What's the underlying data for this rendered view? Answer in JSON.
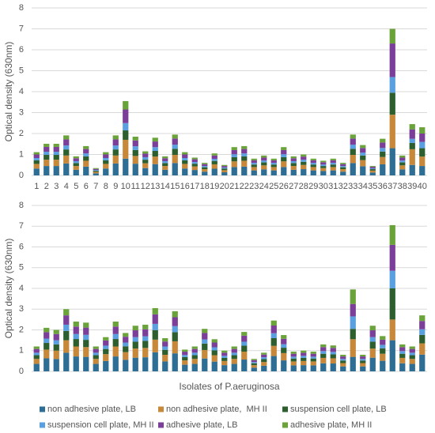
{
  "chart_data": [
    {
      "type": "stacked_bar",
      "y_label": "Optical density (630nm)",
      "categories": [
        "1",
        "2",
        "3",
        "4",
        "5",
        "6",
        "7",
        "8",
        "9",
        "10",
        "11",
        "12",
        "13",
        "14",
        "15",
        "16",
        "17",
        "18",
        "19",
        "20",
        "21",
        "22",
        "23",
        "24",
        "25",
        "26",
        "27",
        "28",
        "29",
        "30",
        "31",
        "32",
        "33",
        "34",
        "35",
        "36",
        "37",
        "38",
        "39",
        "40"
      ],
      "ylim": [
        0,
        8
      ],
      "yticks": [
        0,
        1,
        2,
        3,
        4,
        5,
        6,
        7,
        8
      ],
      "series": [
        {
          "color": "#2e6e94",
          "values": [
            0.33,
            0.45,
            0.45,
            0.57,
            0.27,
            0.42,
            0.1,
            0.33,
            0.57,
            0.8,
            0.56,
            0.35,
            0.54,
            0.27,
            0.59,
            0.33,
            0.26,
            0.18,
            0.32,
            0.15,
            0.4,
            0.42,
            0.24,
            0.29,
            0.24,
            0.4,
            0.27,
            0.3,
            0.24,
            0.21,
            0.24,
            0.18,
            0.59,
            0.44,
            0.14,
            0.53,
            1.3,
            0.29,
            0.5,
            0.45
          ]
        },
        {
          "color": "#c8883a",
          "values": [
            0.22,
            0.3,
            0.3,
            0.38,
            0.18,
            0.28,
            0.07,
            0.22,
            0.38,
            0.9,
            0.37,
            0.23,
            0.36,
            0.18,
            0.39,
            0.22,
            0.17,
            0.12,
            0.21,
            0.1,
            0.27,
            0.28,
            0.16,
            0.19,
            0.16,
            0.27,
            0.18,
            0.2,
            0.16,
            0.14,
            0.16,
            0.12,
            0.39,
            0.29,
            0.09,
            0.35,
            1.6,
            0.19,
            0.75,
            0.45
          ]
        },
        {
          "color": "#2d5f2e",
          "values": [
            0.17,
            0.23,
            0.23,
            0.29,
            0.14,
            0.21,
            0.05,
            0.17,
            0.29,
            0.45,
            0.28,
            0.17,
            0.27,
            0.14,
            0.29,
            0.17,
            0.13,
            0.09,
            0.16,
            0.08,
            0.2,
            0.21,
            0.12,
            0.14,
            0.12,
            0.2,
            0.14,
            0.15,
            0.12,
            0.1,
            0.12,
            0.09,
            0.29,
            0.22,
            0.07,
            0.26,
            1.05,
            0.14,
            0.3,
            0.4
          ]
        },
        {
          "color": "#5aa0e0",
          "values": [
            0.11,
            0.15,
            0.15,
            0.19,
            0.09,
            0.14,
            0.04,
            0.11,
            0.19,
            0.35,
            0.18,
            0.12,
            0.18,
            0.09,
            0.2,
            0.11,
            0.08,
            0.06,
            0.1,
            0.05,
            0.14,
            0.14,
            0.08,
            0.09,
            0.08,
            0.14,
            0.09,
            0.1,
            0.08,
            0.07,
            0.08,
            0.06,
            0.2,
            0.14,
            0.04,
            0.17,
            0.75,
            0.09,
            0.2,
            0.3
          ]
        },
        {
          "color": "#7b3f9a",
          "values": [
            0.17,
            0.23,
            0.23,
            0.29,
            0.14,
            0.21,
            0.05,
            0.17,
            0.29,
            0.65,
            0.28,
            0.17,
            0.27,
            0.14,
            0.29,
            0.17,
            0.13,
            0.09,
            0.16,
            0.07,
            0.2,
            0.21,
            0.12,
            0.14,
            0.12,
            0.2,
            0.14,
            0.15,
            0.12,
            0.11,
            0.12,
            0.09,
            0.29,
            0.22,
            0.07,
            0.26,
            1.6,
            0.14,
            0.45,
            0.4
          ]
        },
        {
          "color": "#6aa33a",
          "values": [
            0.11,
            0.15,
            0.15,
            0.19,
            0.09,
            0.14,
            0.04,
            0.11,
            0.19,
            0.4,
            0.18,
            0.11,
            0.18,
            0.09,
            0.19,
            0.11,
            0.08,
            0.06,
            0.1,
            0.05,
            0.14,
            0.14,
            0.08,
            0.1,
            0.08,
            0.14,
            0.09,
            0.1,
            0.08,
            0.07,
            0.08,
            0.06,
            0.19,
            0.14,
            0.04,
            0.18,
            0.7,
            0.1,
            0.25,
            0.3
          ]
        }
      ]
    },
    {
      "type": "stacked_bar",
      "y_label": "Optical density (630nm)",
      "x_label": "Isolates of P.aeruginosa",
      "legend": "bottom",
      "categories": [
        null,
        null,
        null,
        null,
        null,
        null,
        null,
        null,
        null,
        null,
        null,
        null,
        null,
        null,
        null,
        null,
        null,
        null,
        null,
        null,
        null,
        null,
        null,
        null,
        null,
        null,
        null,
        null,
        null,
        null,
        null,
        null,
        null,
        null,
        null,
        null,
        null,
        null,
        null,
        null
      ],
      "ylim": [
        0,
        8
      ],
      "yticks": [
        0,
        1,
        2,
        3,
        4,
        5,
        6,
        7,
        8
      ],
      "series": [
        {
          "name": "non adhesive plate, LB",
          "color": "#2e6e94",
          "values": [
            0.36,
            0.63,
            0.6,
            0.9,
            0.72,
            0.7,
            0.36,
            0.5,
            0.72,
            0.56,
            0.66,
            0.68,
            0.92,
            0.48,
            0.87,
            0.32,
            0.36,
            0.62,
            0.47,
            0.3,
            0.36,
            0.57,
            0.18,
            0.27,
            0.74,
            0.53,
            0.29,
            0.3,
            0.29,
            0.39,
            0.38,
            0.24,
            0.7,
            0.24,
            0.66,
            0.51,
            1.5,
            0.39,
            0.36,
            0.81
          ]
        },
        {
          "name": "non adhesive plate,  MH II",
          "color": "#c8883a",
          "values": [
            0.24,
            0.42,
            0.4,
            0.6,
            0.48,
            0.47,
            0.24,
            0.33,
            0.48,
            0.37,
            0.44,
            0.45,
            0.61,
            0.32,
            0.58,
            0.21,
            0.24,
            0.41,
            0.31,
            0.2,
            0.24,
            0.38,
            0.12,
            0.18,
            0.49,
            0.35,
            0.19,
            0.2,
            0.19,
            0.26,
            0.25,
            0.16,
            0.85,
            0.16,
            0.44,
            0.34,
            1.0,
            0.26,
            0.24,
            0.54
          ]
        },
        {
          "name": "suspension cell plate, LB",
          "color": "#2d5f2e",
          "values": [
            0.18,
            0.32,
            0.3,
            0.45,
            0.36,
            0.35,
            0.18,
            0.25,
            0.36,
            0.28,
            0.33,
            0.34,
            0.46,
            0.24,
            0.44,
            0.16,
            0.18,
            0.31,
            0.23,
            0.15,
            0.18,
            0.29,
            0.09,
            0.14,
            0.37,
            0.26,
            0.14,
            0.15,
            0.14,
            0.2,
            0.19,
            0.12,
            0.5,
            0.12,
            0.33,
            0.26,
            1.5,
            0.2,
            0.18,
            0.41
          ]
        },
        {
          "name": "suspension cell plate, MH II",
          "color": "#5aa0e0",
          "values": [
            0.12,
            0.21,
            0.2,
            0.3,
            0.24,
            0.24,
            0.12,
            0.16,
            0.24,
            0.18,
            0.22,
            0.22,
            0.3,
            0.16,
            0.29,
            0.1,
            0.12,
            0.2,
            0.15,
            0.1,
            0.12,
            0.19,
            0.06,
            0.09,
            0.24,
            0.17,
            0.09,
            0.1,
            0.09,
            0.13,
            0.12,
            0.08,
            0.6,
            0.08,
            0.22,
            0.17,
            0.85,
            0.13,
            0.12,
            0.27
          ]
        },
        {
          "name": "adhesive plate, LB",
          "color": "#7b3f9a",
          "values": [
            0.18,
            0.31,
            0.3,
            0.45,
            0.36,
            0.35,
            0.18,
            0.25,
            0.36,
            0.28,
            0.33,
            0.34,
            0.46,
            0.24,
            0.43,
            0.16,
            0.18,
            0.31,
            0.23,
            0.15,
            0.18,
            0.29,
            0.09,
            0.13,
            0.37,
            0.26,
            0.14,
            0.15,
            0.14,
            0.19,
            0.19,
            0.12,
            0.6,
            0.12,
            0.33,
            0.25,
            1.25,
            0.19,
            0.18,
            0.4
          ]
        },
        {
          "name": "adhesive plate, MH II",
          "color": "#6aa33a",
          "values": [
            0.12,
            0.21,
            0.2,
            0.3,
            0.24,
            0.24,
            0.12,
            0.16,
            0.24,
            0.18,
            0.22,
            0.22,
            0.3,
            0.16,
            0.29,
            0.1,
            0.12,
            0.2,
            0.16,
            0.1,
            0.12,
            0.18,
            0.06,
            0.09,
            0.24,
            0.18,
            0.1,
            0.1,
            0.1,
            0.13,
            0.12,
            0.08,
            0.7,
            0.08,
            0.22,
            0.17,
            0.95,
            0.13,
            0.12,
            0.27
          ]
        }
      ]
    }
  ]
}
